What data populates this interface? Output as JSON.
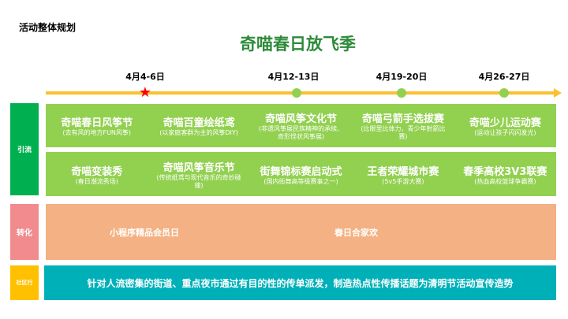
{
  "heading": "活动整体规划",
  "title": "奇喵春日放飞季",
  "colors": {
    "timeline": "#fbc02d",
    "green": "#92d050",
    "yinliu": "#00b050",
    "zhuanhua_label": "#f28b8d",
    "zhuanhua": "#f4b183",
    "shequ_label": "#ffc000",
    "shequ": "#00b0b9",
    "title": "#2e8b3a",
    "star": "#ff0000"
  },
  "timeline": {
    "dates": [
      "4月4-6日",
      "4月12-13日",
      "4月19-20日",
      "4月26-27日"
    ],
    "current_marker": "star-icon"
  },
  "sections": {
    "yinliu": {
      "label": "引流",
      "row1": [
        {
          "title": "奇喵春日风筝节",
          "sub": "(去有风的地方FUN风筝)"
        },
        {
          "title": "奇喵百童绘纸鸢",
          "sub": "(以家庭客群为主的风筝DIY)"
        },
        {
          "title": "奇喵风筝文化节",
          "sub": "(非遗风筝展民族精神的承续、奇形怪状风筝展)"
        },
        {
          "title": "奇喵弓箭手选拔赛",
          "sub": "(比眼里比体力，青少年射箭比赛)"
        },
        {
          "title": "奇喵少儿运动赛",
          "sub": "(运动让孩子闪闪发光)"
        }
      ],
      "row2": [
        {
          "title": "奇喵变装秀",
          "sub": "(春日潮流秀场)"
        },
        {
          "title": "奇喵风筝音乐节",
          "sub": "(传统纸鸢与现代音乐的奇妙碰撞)"
        },
        {
          "title": "街舞锦标赛启动式",
          "sub": "(国内街舞高等级赛事之一)"
        },
        {
          "title": "王者荣耀城市赛",
          "sub": "(5v5手游大赛)"
        },
        {
          "title": "春季高校3V3联赛",
          "sub": "(热血高校篮球争霸赛)"
        }
      ]
    },
    "zhuanhua": {
      "label": "转化",
      "items": [
        "小程序精品会员日",
        "春日合家欢"
      ]
    },
    "shequ": {
      "label": "社区行",
      "text": "针对人流密集的街道、重点夜市通过有目的性的传单派发，制造热点性传播话题为清明节活动宣传造势"
    }
  }
}
